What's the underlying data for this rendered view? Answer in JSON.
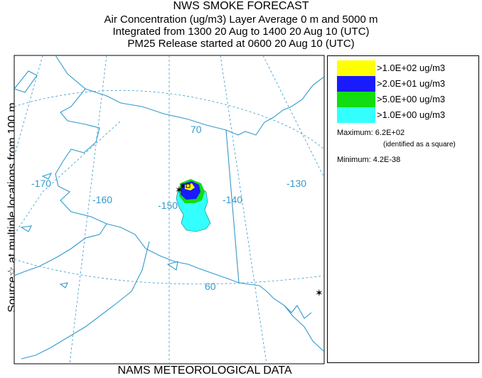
{
  "header": {
    "title": "NWS SMOKE FORECAST",
    "line1": "Air Concentration (ug/m3) Layer Average    0 m and  5000 m",
    "line2": "Integrated from 1300 20 Aug to 1400 20 Aug 10 (UTC)",
    "line3": "PM25 Release started at 0600 20 Aug 10 (UTC)"
  },
  "side_label": "Source☆   at multiple locations   from    100 m",
  "footer": "NAMS METEOROLOGICAL DATA",
  "map": {
    "longitude_labels": [
      "-170",
      "-160",
      "-150",
      "-140",
      "-130"
    ],
    "latitude_labels": [
      "70",
      "60"
    ],
    "colors": {
      "coast": "#3399cc",
      "grid": "#3399cc",
      "cyan": "#33ffff",
      "green": "#22cc22",
      "blue": "#2233ff",
      "yellow": "#ffff00"
    }
  },
  "legend": {
    "items": [
      {
        "label": ">1.0E+02 ug/m3",
        "color": "#ffff00"
      },
      {
        "label": ">2.0E+01 ug/m3",
        "color": "#1a1aff"
      },
      {
        "label": ">5.0E+00 ug/m3",
        "color": "#11dd11"
      },
      {
        "label": ">1.0E+00 ug/m3",
        "color": "#33ffff"
      }
    ],
    "maximum": "Maximum: 6.2E+02",
    "maximum_note": "(identified as a square)",
    "minimum": "Minimum: 4.2E-38"
  }
}
